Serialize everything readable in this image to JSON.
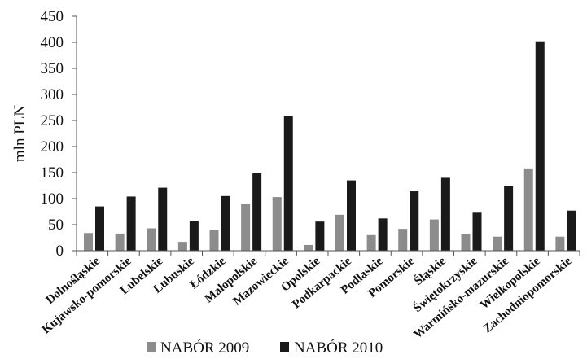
{
  "chart_data": {
    "type": "bar",
    "ylabel": "mln PLN",
    "xlabel": "",
    "title": "",
    "ylim": [
      0,
      450
    ],
    "yticks": [
      0,
      50,
      100,
      150,
      200,
      250,
      300,
      350,
      400,
      450
    ],
    "grid": false,
    "legend_position": "bottom",
    "categories": [
      "Dolnośląskie",
      "Kujawsko-pomorskie",
      "Lubelskie",
      "Lubuskie",
      "Łódzkie",
      "Małopolskie",
      "Mazowieckie",
      "Opolskie",
      "Podkarpackie",
      "Podlaskie",
      "Pomorskie",
      "Śląskie",
      "Świętokrzyskie",
      "Warmińsko-mazurskie",
      "Wielkopolskie",
      "Zachodniopomorskie"
    ],
    "series": [
      {
        "name": "NABÓR 2009",
        "color": "#8c8c8c",
        "values": [
          34,
          33,
          43,
          17,
          40,
          90,
          103,
          11,
          69,
          30,
          42,
          60,
          32,
          27,
          158,
          27
        ]
      },
      {
        "name": "NABÓR 2010",
        "color": "#1a1a1a",
        "values": [
          85,
          104,
          121,
          57,
          105,
          149,
          259,
          56,
          135,
          62,
          114,
          140,
          73,
          124,
          402,
          77
        ]
      }
    ]
  }
}
